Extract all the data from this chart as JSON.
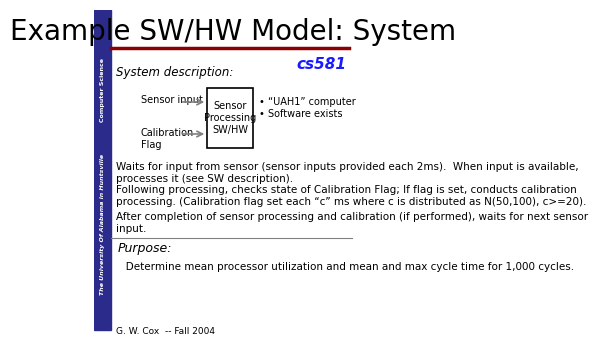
{
  "title": "Example SW/HW Model: System",
  "cs581_text": "cs581",
  "sidebar_bg": "#2b2b8c",
  "header_line_color": "#8b0000",
  "section1_label": "System description:",
  "sensor_input_label": "Sensor input",
  "calib_flag_label": "Calibration\nFlag",
  "box_label": "Sensor\nProcessing\nSW/HW",
  "bullet1": "• “UAH1” computer",
  "bullet2": "• Software exists",
  "para1": "Waits for input from sensor (sensor inputs provided each 2ms).  When input is available,\nprocesses it (see SW description).",
  "para2": "Following processing, checks state of Calibration Flag; If flag is set, conducts calibration\nprocessing. (Calibration flag set each “c” ms where c is distributed as N(50,100), c>=20).",
  "para3": "After completion of sensor processing and calibration (if performed), waits for next sensor\ninput.",
  "section2_label": "Purpose:",
  "purpose_text": "   Determine mean processor utilization and mean and max cycle time for 1,000 cycles.",
  "footer": "G. W. Cox  -- Fall 2004",
  "title_fontsize": 20,
  "body_fontsize": 7.5,
  "small_fontsize": 6.5
}
